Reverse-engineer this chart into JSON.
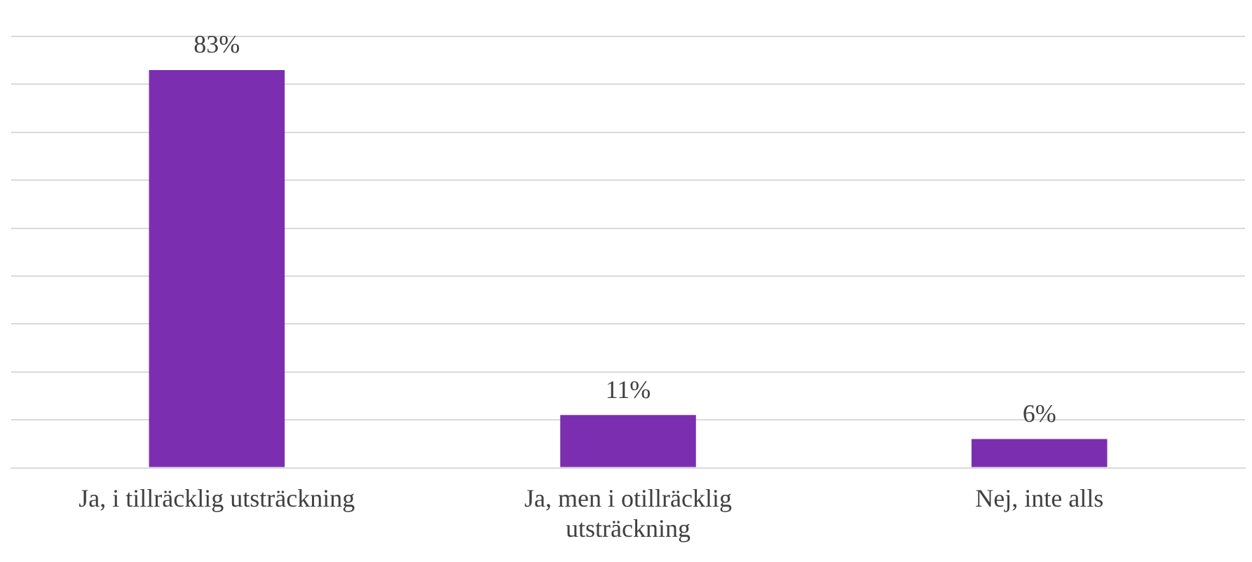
{
  "chart_data": {
    "type": "bar",
    "categories": [
      "Ja, i tillräcklig utsträckning",
      "Ja, men i otillräcklig utsträckning",
      "Nej, inte alls"
    ],
    "values": [
      83,
      11,
      6
    ],
    "value_labels": [
      "83%",
      "11%",
      "6%"
    ],
    "color": "#7b2fb0",
    "ylim": [
      0,
      90
    ],
    "yticks": [
      {
        "value": 0,
        "label": null
      },
      {
        "value": 10,
        "label": null
      },
      {
        "value": 20,
        "label": null
      },
      {
        "value": 30,
        "label": null
      },
      {
        "value": 40,
        "label": null
      },
      {
        "value": 50,
        "label": null
      },
      {
        "value": 60,
        "label": null
      },
      {
        "value": 70,
        "label": null
      },
      {
        "value": 80,
        "label": null
      },
      {
        "value": 90,
        "label": null
      }
    ],
    "grid": "y",
    "tick_labels": "x",
    "legend": false
  }
}
